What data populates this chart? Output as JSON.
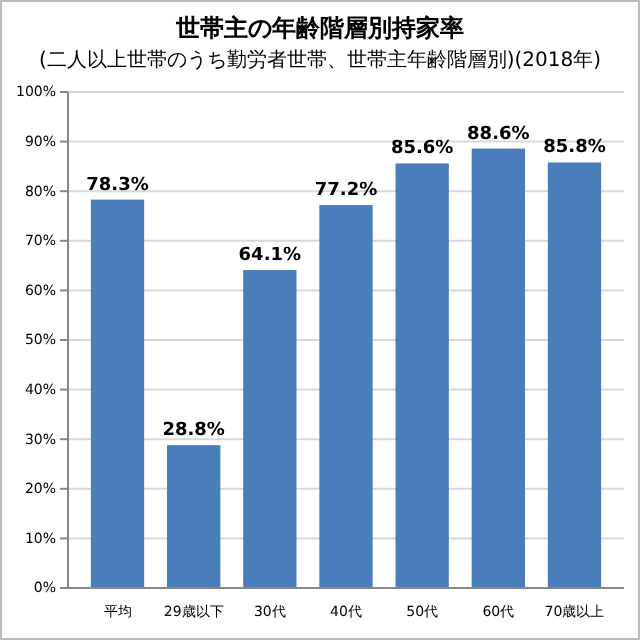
{
  "chart_data": {
    "type": "bar",
    "title": "世帯主の年齢階層別持家率",
    "subtitle": "(二人以上世帯のうち勤労者世帯、世帯主年齢階層別)(2018年)",
    "categories": [
      "平均",
      "29歳以下",
      "30代",
      "40代",
      "50代",
      "60代",
      "70歳以上"
    ],
    "values": [
      78.3,
      28.8,
      64.1,
      77.2,
      85.6,
      88.6,
      85.8
    ],
    "value_labels": [
      "78.3%",
      "28.8%",
      "64.1%",
      "77.2%",
      "85.6%",
      "88.6%",
      "85.8%"
    ],
    "color": "#4a7ebb",
    "ylim": [
      0,
      100
    ],
    "yticks": [
      {
        "value": 0,
        "label": "0%"
      },
      {
        "value": 10,
        "label": "10%"
      },
      {
        "value": 20,
        "label": "20%"
      },
      {
        "value": 30,
        "label": "30%"
      },
      {
        "value": 40,
        "label": "40%"
      },
      {
        "value": 50,
        "label": "50%"
      },
      {
        "value": 60,
        "label": "60%"
      },
      {
        "value": 70,
        "label": "70%"
      },
      {
        "value": 80,
        "label": "80%"
      },
      {
        "value": 90,
        "label": "90%"
      },
      {
        "value": 100,
        "label": "100%"
      }
    ],
    "grid": true
  }
}
